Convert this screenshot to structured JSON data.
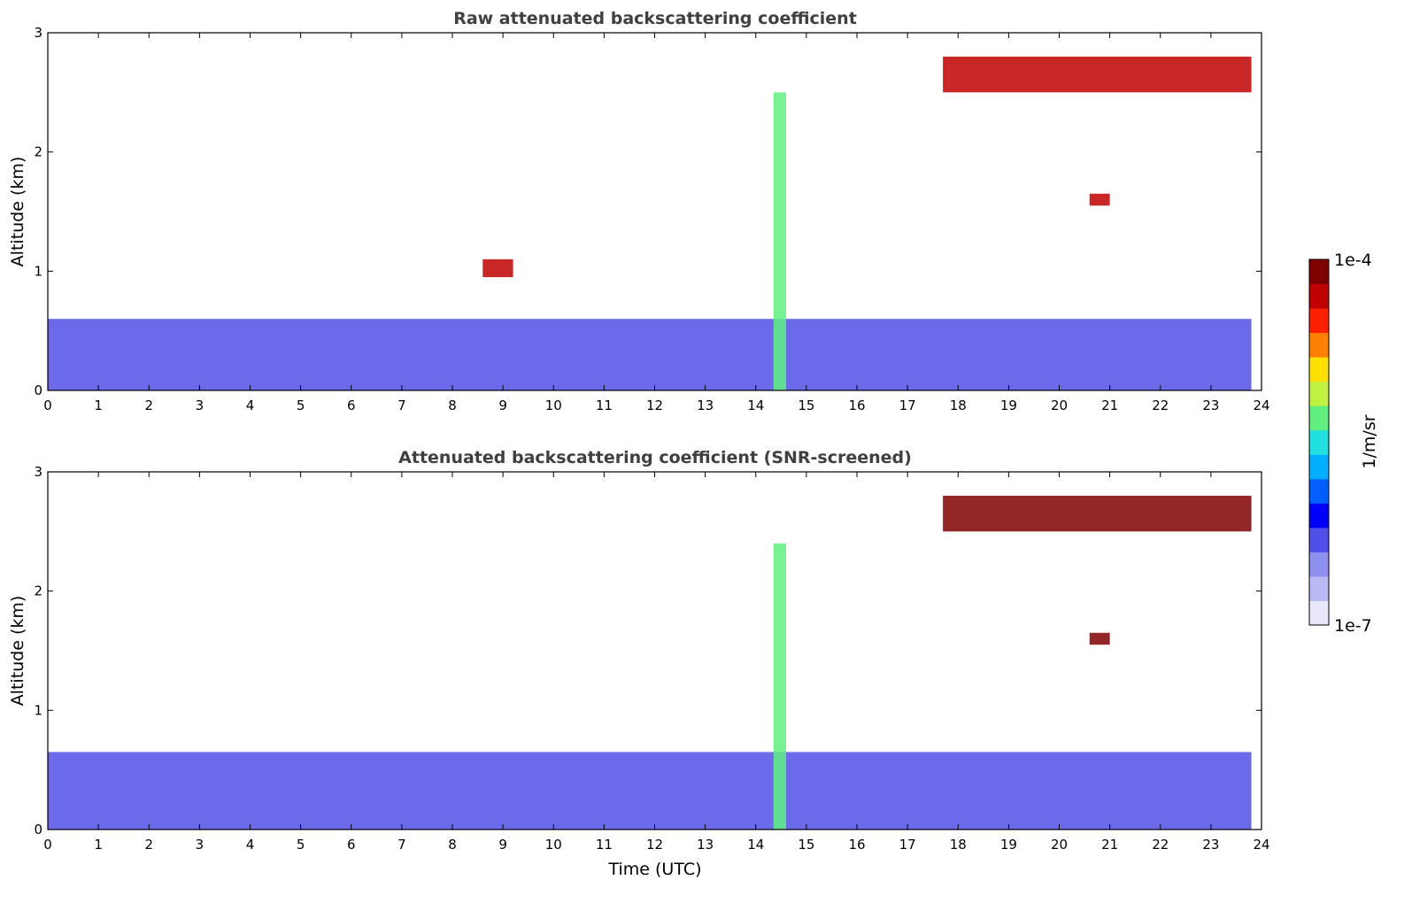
{
  "chart_data": [
    {
      "type": "heatmap",
      "title": "Raw attenuated backscattering coefficient",
      "xlabel": "",
      "ylabel": "Altitude (km)",
      "xlim": [
        0,
        24
      ],
      "ylim": [
        0,
        3
      ],
      "xticks": [
        "0",
        "1",
        "2",
        "3",
        "4",
        "5",
        "6",
        "7",
        "8",
        "9",
        "10",
        "11",
        "12",
        "13",
        "14",
        "15",
        "16",
        "17",
        "18",
        "19",
        "20",
        "21",
        "22",
        "23",
        "24"
      ],
      "yticks": [
        "0",
        "1",
        "2",
        "3"
      ],
      "features": [
        {
          "kind": "boundary-layer",
          "t": [
            0,
            23.8
          ],
          "z": [
            0,
            0.6
          ],
          "value": 0.2
        },
        {
          "kind": "plume",
          "t": [
            14.35,
            14.6
          ],
          "z": [
            0,
            2.5
          ],
          "value": 0.6
        },
        {
          "kind": "cloud-layer",
          "t": [
            17.7,
            23.8
          ],
          "z": [
            2.5,
            2.8
          ],
          "value": 0.95
        },
        {
          "kind": "cloud",
          "t": [
            20.6,
            21.0
          ],
          "z": [
            1.55,
            1.65
          ],
          "value": 0.95
        },
        {
          "kind": "cloud",
          "t": [
            8.6,
            9.2
          ],
          "z": [
            0.95,
            1.1
          ],
          "value": 0.9
        }
      ]
    },
    {
      "type": "heatmap",
      "title": "Attenuated backscattering coefficient (SNR-screened)",
      "xlabel": "Time (UTC)",
      "ylabel": "Altitude (km)",
      "xlim": [
        0,
        24
      ],
      "ylim": [
        0,
        3
      ],
      "xticks": [
        "0",
        "1",
        "2",
        "3",
        "4",
        "5",
        "6",
        "7",
        "8",
        "9",
        "10",
        "11",
        "12",
        "13",
        "14",
        "15",
        "16",
        "17",
        "18",
        "19",
        "20",
        "21",
        "22",
        "23",
        "24"
      ],
      "yticks": [
        "0",
        "1",
        "2",
        "3"
      ],
      "features": [
        {
          "kind": "boundary-layer",
          "t": [
            0,
            23.8
          ],
          "z": [
            0,
            0.65
          ],
          "value": 0.2
        },
        {
          "kind": "plume",
          "t": [
            14.35,
            14.6
          ],
          "z": [
            0,
            2.4
          ],
          "value": 0.6
        },
        {
          "kind": "cloud-layer",
          "t": [
            17.7,
            23.8
          ],
          "z": [
            2.5,
            2.8
          ],
          "value": 1.0
        },
        {
          "kind": "cloud",
          "t": [
            20.6,
            21.0
          ],
          "z": [
            1.55,
            1.65
          ],
          "value": 1.0
        }
      ]
    }
  ],
  "colorbar": {
    "label": "1/m/sr",
    "max_label": "1e-4",
    "min_label": "1e-7",
    "colors": [
      "#e8e8fa",
      "#b9b9f5",
      "#8f8ff0",
      "#5050e8",
      "#0000ff",
      "#0060ff",
      "#00b0ff",
      "#20e0e0",
      "#60f080",
      "#c0f040",
      "#ffe000",
      "#ff8000",
      "#ff2000",
      "#c00000",
      "#800000"
    ]
  }
}
